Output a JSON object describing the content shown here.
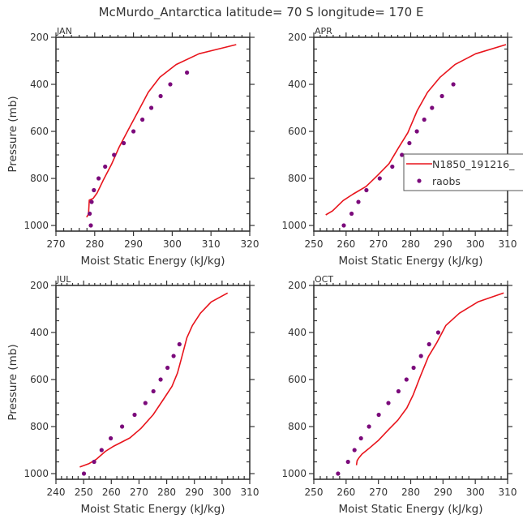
{
  "figure": {
    "title": "McMurdo_Antarctica  latitude= 70 S longitude= 170 E"
  },
  "colors": {
    "model_line": "#e8141c",
    "raobs_marker": "#7b0a7b",
    "axes": "#333333"
  },
  "legend": {
    "entries": [
      {
        "label": "N1850_191216_",
        "style": "line"
      },
      {
        "label": "raobs",
        "style": "marker"
      }
    ]
  },
  "chart_data": [
    {
      "type": "line",
      "panel_label": "JAN",
      "xlabel": "Moist Static Energy (kJ/kg)",
      "ylabel": "Pressure (mb)",
      "xlim": [
        270,
        320
      ],
      "ylim": [
        1024,
        200
      ],
      "y_inverted": true,
      "xticks": [
        270,
        280,
        290,
        300,
        310,
        320
      ],
      "yticks": [
        200,
        400,
        600,
        800,
        1000
      ],
      "show_ylabel": true,
      "show_legend": false,
      "series": [
        {
          "name": "N1850_191216_",
          "kind": "line",
          "points": [
            [
              316.5,
              231
            ],
            [
              306.9,
              270
            ],
            [
              301.0,
              316
            ],
            [
              296.8,
              370
            ],
            [
              293.8,
              434
            ],
            [
              291.3,
              512
            ],
            [
              288.8,
              589
            ],
            [
              286.3,
              667
            ],
            [
              284.3,
              741
            ],
            [
              282.2,
              808
            ],
            [
              280.6,
              862
            ],
            [
              279.6,
              885
            ],
            [
              278.6,
              892
            ],
            [
              278.4,
              951
            ],
            [
              277.9,
              965
            ]
          ]
        },
        {
          "name": "raobs",
          "kind": "scatter",
          "points": [
            [
              303.8,
              350
            ],
            [
              299.5,
              400
            ],
            [
              297.0,
              450
            ],
            [
              294.6,
              500
            ],
            [
              292.3,
              550
            ],
            [
              290.0,
              600
            ],
            [
              287.5,
              650
            ],
            [
              285.0,
              700
            ],
            [
              282.7,
              750
            ],
            [
              281.0,
              800
            ],
            [
              279.8,
              850
            ],
            [
              279.2,
              900
            ],
            [
              278.7,
              950
            ],
            [
              279.0,
              1000
            ]
          ]
        }
      ]
    },
    {
      "type": "line",
      "panel_label": "APR",
      "xlabel": "Moist Static Energy (kJ/kg)",
      "ylabel": "",
      "xlim": [
        250,
        310
      ],
      "ylim": [
        1024,
        200
      ],
      "y_inverted": true,
      "xticks": [
        250,
        260,
        270,
        280,
        290,
        300,
        310
      ],
      "yticks": [
        200,
        400,
        600,
        800,
        1000
      ],
      "show_ylabel": false,
      "show_legend": true,
      "legend_position": "right",
      "series": [
        {
          "name": "N1850_191216_",
          "kind": "line",
          "points": [
            [
              309.5,
              231
            ],
            [
              300.1,
              270
            ],
            [
              293.7,
              316
            ],
            [
              289.1,
              370
            ],
            [
              285.2,
              434
            ],
            [
              282.0,
              512
            ],
            [
              279.1,
              606
            ],
            [
              276.2,
              670
            ],
            [
              273.3,
              737
            ],
            [
              269.6,
              789
            ],
            [
              266.2,
              834
            ],
            [
              262.1,
              867
            ],
            [
              259.1,
              894
            ],
            [
              255.8,
              938
            ],
            [
              253.7,
              955
            ]
          ]
        },
        {
          "name": "raobs",
          "kind": "scatter",
          "points": [
            [
              293.2,
              400
            ],
            [
              289.7,
              450
            ],
            [
              286.6,
              500
            ],
            [
              284.2,
              550
            ],
            [
              281.9,
              600
            ],
            [
              279.6,
              650
            ],
            [
              277.3,
              700
            ],
            [
              274.3,
              750
            ],
            [
              270.4,
              800
            ],
            [
              266.3,
              850
            ],
            [
              263.8,
              900
            ],
            [
              261.7,
              950
            ],
            [
              259.3,
              1000
            ]
          ]
        }
      ]
    },
    {
      "type": "line",
      "panel_label": "JUL",
      "xlabel": "Moist Static Energy (kJ/kg)",
      "ylabel": "Pressure (mb)",
      "xlim": [
        240,
        310
      ],
      "ylim": [
        1024,
        200
      ],
      "y_inverted": true,
      "xticks": [
        240,
        250,
        260,
        270,
        280,
        290,
        300,
        310
      ],
      "yticks": [
        200,
        400,
        600,
        800,
        1000
      ],
      "show_ylabel": true,
      "show_legend": false,
      "series": [
        {
          "name": "N1850_191216_",
          "kind": "line",
          "points": [
            [
              302.0,
              232
            ],
            [
              296.1,
              270
            ],
            [
              292.2,
              318
            ],
            [
              289.3,
              370
            ],
            [
              287.3,
              422
            ],
            [
              285.5,
              503
            ],
            [
              283.9,
              572
            ],
            [
              281.9,
              629
            ],
            [
              279.0,
              681
            ],
            [
              275.1,
              750
            ],
            [
              270.7,
              808
            ],
            [
              266.7,
              848
            ],
            [
              260.9,
              883
            ],
            [
              257.9,
              905
            ],
            [
              254.5,
              940
            ],
            [
              252.0,
              957
            ],
            [
              248.6,
              972
            ]
          ]
        },
        {
          "name": "raobs",
          "kind": "scatter",
          "points": [
            [
              284.6,
              450
            ],
            [
              282.5,
              500
            ],
            [
              280.3,
              550
            ],
            [
              277.8,
              600
            ],
            [
              275.2,
              650
            ],
            [
              272.3,
              700
            ],
            [
              268.4,
              750
            ],
            [
              263.9,
              800
            ],
            [
              259.8,
              850
            ],
            [
              256.5,
              900
            ],
            [
              253.8,
              950
            ],
            [
              250.1,
              1000
            ]
          ]
        }
      ]
    },
    {
      "type": "line",
      "panel_label": "OCT",
      "xlabel": "Moist Static Energy (kJ/kg)",
      "ylabel": "",
      "xlim": [
        250,
        310
      ],
      "ylim": [
        1024,
        200
      ],
      "y_inverted": true,
      "xticks": [
        250,
        260,
        270,
        280,
        290,
        300,
        310
      ],
      "yticks": [
        200,
        400,
        600,
        800,
        1000
      ],
      "show_ylabel": false,
      "show_legend": false,
      "series": [
        {
          "name": "N1850_191216_",
          "kind": "line",
          "points": [
            [
              308.8,
              232
            ],
            [
              300.8,
              270
            ],
            [
              295.1,
              318
            ],
            [
              290.9,
              370
            ],
            [
              288.0,
              445
            ],
            [
              285.5,
              502
            ],
            [
              282.9,
              589
            ],
            [
              280.8,
              664
            ],
            [
              278.8,
              721
            ],
            [
              276.0,
              773
            ],
            [
              273.3,
              811
            ],
            [
              269.9,
              860
            ],
            [
              267.0,
              894
            ],
            [
              264.9,
              917
            ],
            [
              263.9,
              934
            ],
            [
              263.4,
              945
            ],
            [
              263.2,
              964
            ]
          ]
        },
        {
          "name": "raobs",
          "kind": "scatter",
          "points": [
            [
              288.5,
              400
            ],
            [
              285.7,
              450
            ],
            [
              283.2,
              500
            ],
            [
              280.9,
              550
            ],
            [
              278.7,
              600
            ],
            [
              276.2,
              650
            ],
            [
              273.1,
              700
            ],
            [
              270.1,
              750
            ],
            [
              267.1,
              800
            ],
            [
              264.6,
              850
            ],
            [
              262.6,
              900
            ],
            [
              260.6,
              950
            ],
            [
              257.5,
              1000
            ]
          ]
        }
      ]
    }
  ]
}
